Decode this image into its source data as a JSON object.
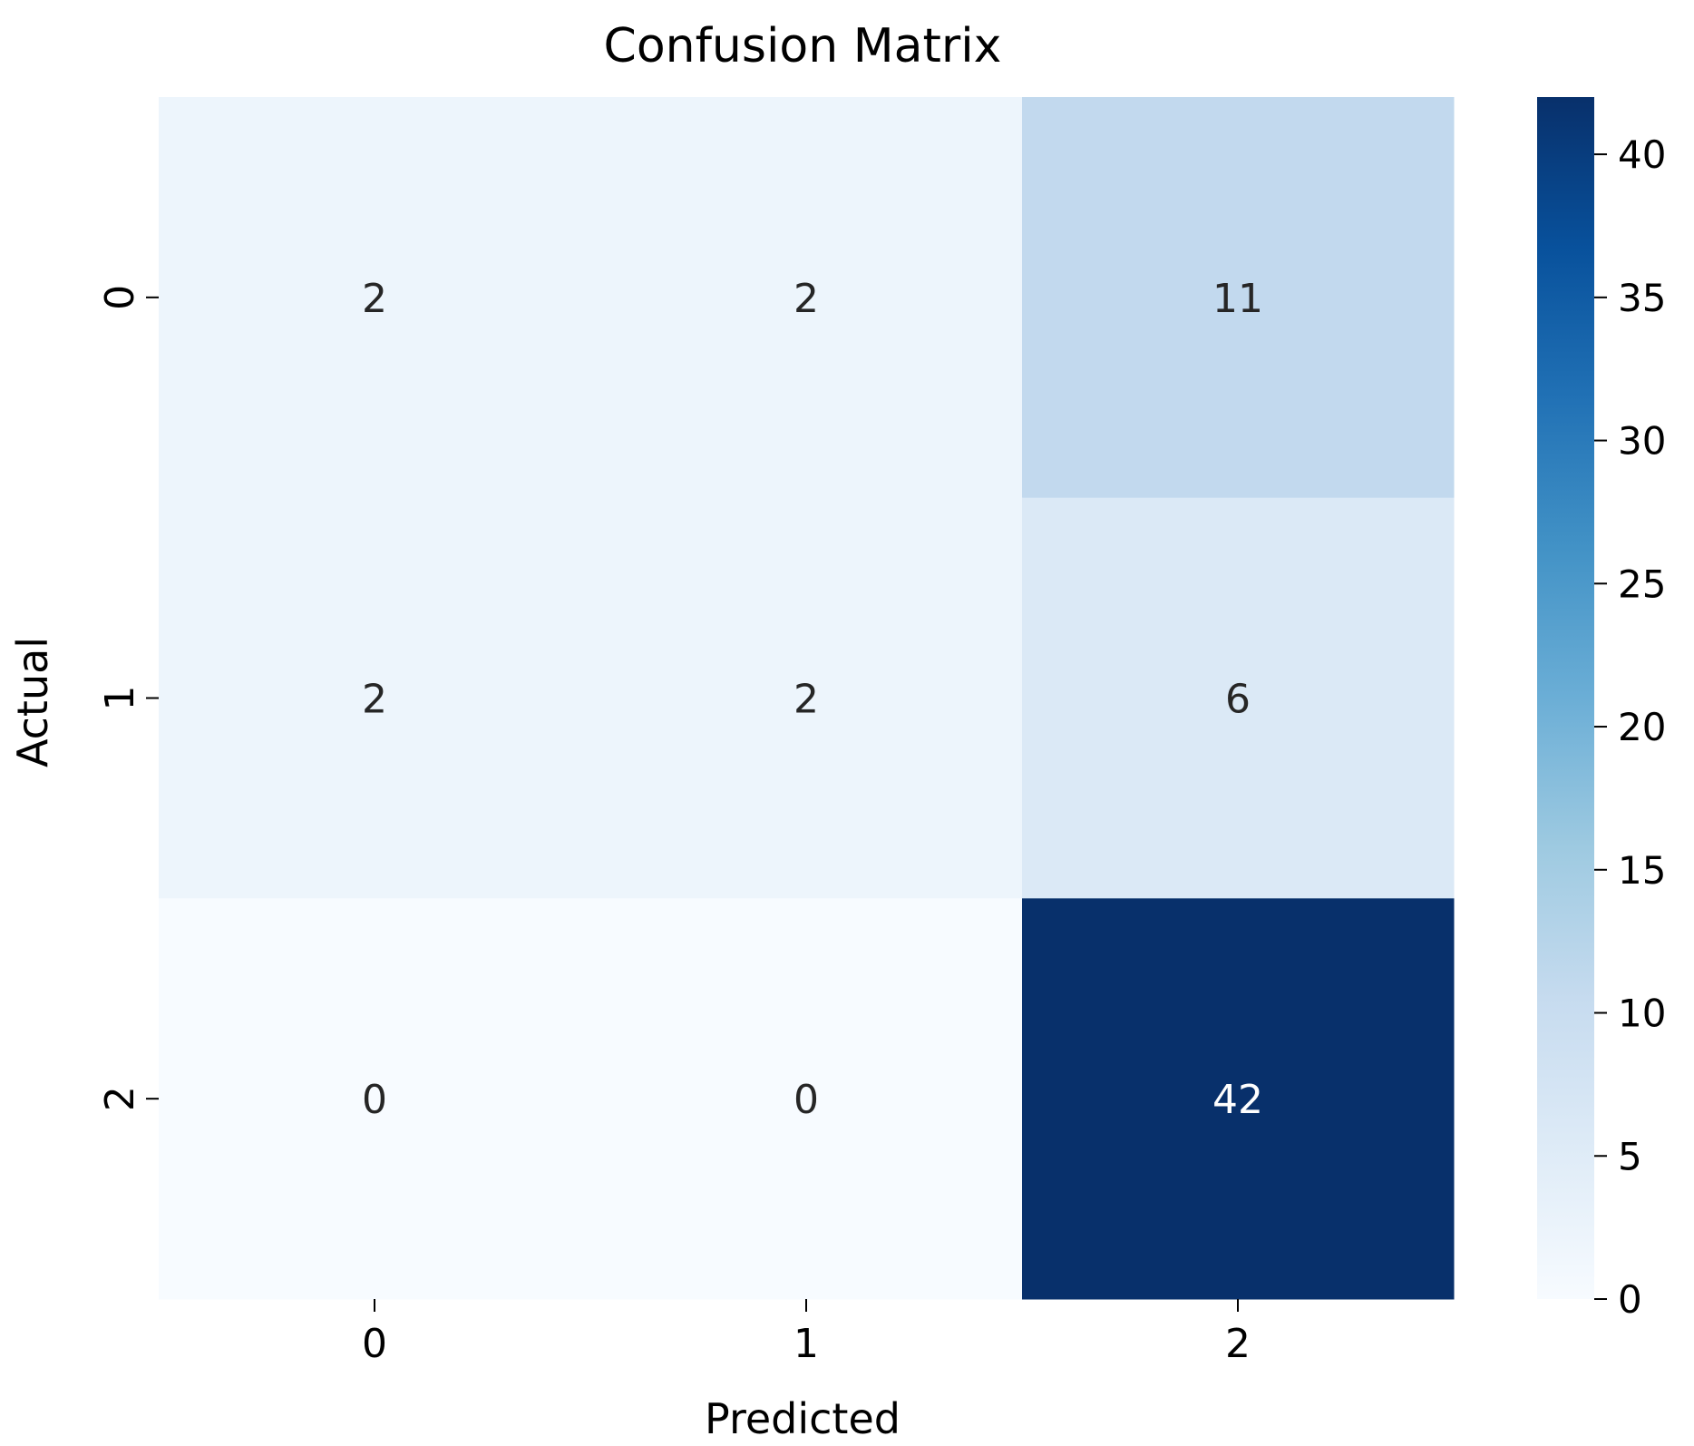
{
  "chart_data": {
    "type": "heatmap",
    "title": "Confusion Matrix",
    "xlabel": "Predicted",
    "ylabel": "Actual",
    "x_categories": [
      "0",
      "1",
      "2"
    ],
    "y_categories": [
      "0",
      "1",
      "2"
    ],
    "values": [
      [
        2,
        2,
        11
      ],
      [
        2,
        2,
        6
      ],
      [
        0,
        0,
        42
      ]
    ],
    "colormap": "Blues",
    "colorbar": {
      "min": 0,
      "max": 42,
      "ticks": [
        0,
        5,
        10,
        15,
        20,
        25,
        30,
        35,
        40
      ],
      "tick_labels": [
        "0",
        "5",
        "10",
        "15",
        "20",
        "25",
        "30",
        "35",
        "40"
      ]
    },
    "colors": {
      "low": "#f7fbff",
      "high": "#08306b",
      "text_dark": "#262626",
      "text_light": "#ffffff"
    }
  }
}
